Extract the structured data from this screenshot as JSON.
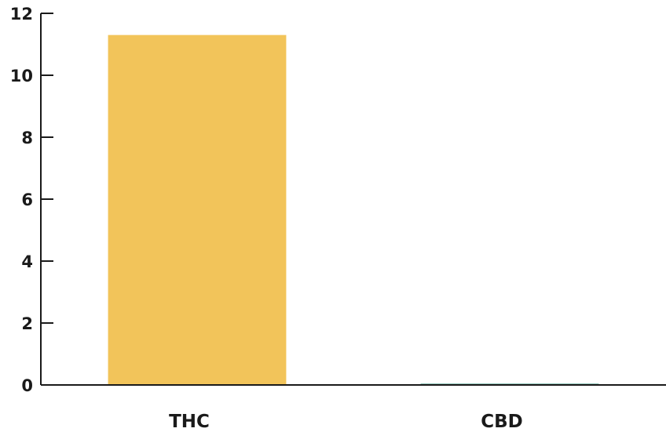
{
  "chart_data": {
    "type": "bar",
    "title": "",
    "xlabel": "",
    "ylabel": "",
    "categories": [
      "THC",
      "CBD"
    ],
    "values": [
      11.3,
      0.03
    ],
    "colors": [
      "#f2c45a",
      "#1f8a70"
    ],
    "ylim": [
      0,
      12
    ],
    "yticks": [
      0,
      2,
      4,
      6,
      8,
      10,
      12
    ],
    "grid": false,
    "legend": "none"
  }
}
